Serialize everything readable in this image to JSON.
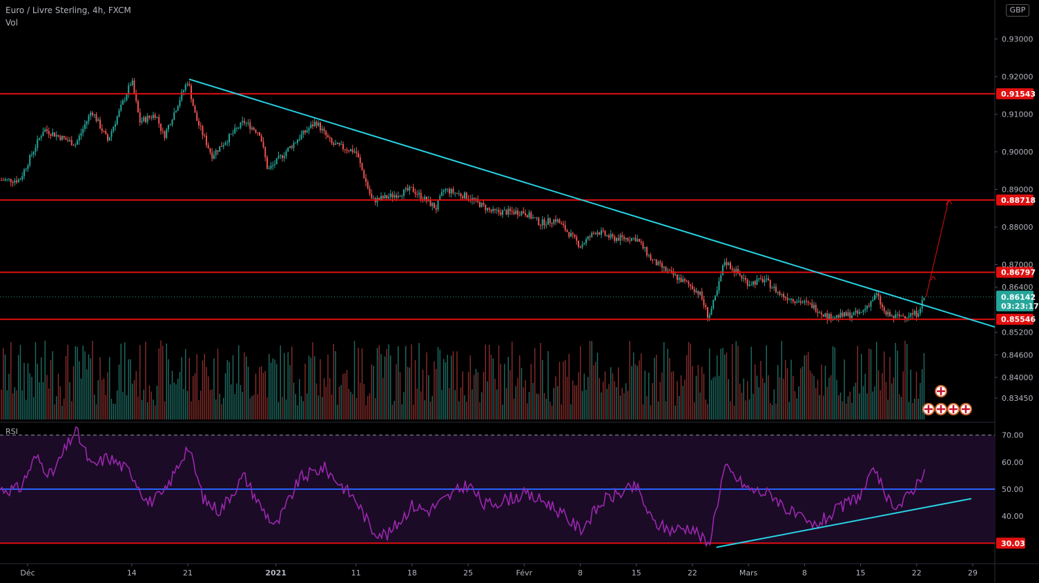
{
  "header": {
    "symbol": "Euro / Livre Sterling, 4h, FXCM",
    "volume_label": "Vol",
    "rsi_label": "RSI",
    "currency_badge": "GBP"
  },
  "colors": {
    "background": "#000000",
    "up": "#26a69a",
    "down": "#ef5350",
    "level_line": "#e01010",
    "trendline": "#28d3e6",
    "rsi_line": "#9c27b0",
    "rsi_mid": "#2962ff",
    "badge_red": "#e01010",
    "badge_price": "#26a69a"
  },
  "chart_data": [
    {
      "type": "candlestick",
      "title": "Euro / Livre Sterling, 4h, FXCM",
      "x_labels": [
        "Déc",
        "14",
        "21",
        "2021",
        "11",
        "18",
        "25",
        "Févr",
        "8",
        "15",
        "22",
        "Mars",
        "8",
        "15",
        "22",
        "29"
      ],
      "y_ticks": [
        0.93,
        0.92,
        0.91,
        0.9,
        0.89,
        0.88,
        0.87,
        0.864,
        0.852,
        0.846,
        0.84,
        0.8345
      ],
      "y_tick_labels": [
        "0.93000",
        "0.92000",
        "0.91000",
        "0.90000",
        "0.89000",
        "0.88000",
        "0.87000",
        "0.86400",
        "0.85200",
        "0.84600",
        "0.84000",
        "0.83450"
      ],
      "horizontal_levels": [
        {
          "value": 0.91543,
          "label": "0.91543"
        },
        {
          "value": 0.88718,
          "label": "0.88718"
        },
        {
          "value": 0.86797,
          "label": "0.86797"
        },
        {
          "value": 0.85546,
          "label": "0.85546"
        }
      ],
      "current_price": {
        "value": 0.86142,
        "label": "0.86142",
        "countdown": "03:23:17"
      },
      "price_path": [
        [
          "Nov 30",
          0.8925
        ],
        [
          "Dec 03",
          0.906
        ],
        [
          "Dec 07",
          0.902
        ],
        [
          "Dec 09",
          0.911
        ],
        [
          "Dec 11",
          0.903
        ],
        [
          "Dec 14",
          0.919
        ],
        [
          "Dec 15",
          0.908
        ],
        [
          "Dec 17",
          0.91
        ],
        [
          "Dec 18",
          0.904
        ],
        [
          "Dec 21",
          0.919
        ],
        [
          "Dec 22",
          0.909
        ],
        [
          "Dec 24",
          0.899
        ],
        [
          "Dec 28",
          0.908
        ],
        [
          "Dec 30",
          0.905
        ],
        [
          "Dec 31",
          0.895
        ],
        [
          "Jan 04",
          0.904
        ],
        [
          "Jan 06",
          0.908
        ],
        [
          "Jan 08",
          0.902
        ],
        [
          "Jan 11",
          0.9
        ],
        [
          "Jan 13",
          0.887
        ],
        [
          "Jan 15",
          0.888
        ],
        [
          "Jan 18",
          0.89
        ],
        [
          "Jan 21",
          0.885
        ],
        [
          "Jan 22",
          0.89
        ],
        [
          "Jan 25",
          0.888
        ],
        [
          "Jan 28",
          0.884
        ],
        [
          "Feb 01",
          0.884
        ],
        [
          "Feb 03",
          0.881
        ],
        [
          "Feb 05",
          0.882
        ],
        [
          "Feb 08",
          0.875
        ],
        [
          "Feb 10",
          0.879
        ],
        [
          "Feb 12",
          0.877
        ],
        [
          "Feb 15",
          0.877
        ],
        [
          "Feb 17",
          0.871
        ],
        [
          "Feb 19",
          0.868
        ],
        [
          "Feb 22",
          0.864
        ],
        [
          "Feb 23",
          0.862
        ],
        [
          "Feb 24",
          0.856
        ],
        [
          "Feb 25",
          0.862
        ],
        [
          "Feb 26",
          0.871
        ],
        [
          "Mar 01",
          0.865
        ],
        [
          "Mar 03",
          0.866
        ],
        [
          "Mar 05",
          0.862
        ],
        [
          "Mar 09",
          0.859
        ],
        [
          "Mar 11",
          0.856
        ],
        [
          "Mar 15",
          0.857
        ],
        [
          "Mar 17",
          0.862
        ],
        [
          "Mar 18",
          0.857
        ],
        [
          "Mar 19",
          0.856
        ],
        [
          "Mar 22",
          0.857
        ],
        [
          "Mar 23",
          0.8614
        ]
      ],
      "trendline": {
        "from": [
          "Dec 21",
          0.9193
        ],
        "to": [
          "Mar 29",
          0.8534
        ]
      },
      "projection_arrow": {
        "from": [
          "Mar 23",
          0.8614
        ],
        "to": [
          "Mar 26",
          0.8872
        ]
      }
    },
    {
      "type": "line",
      "title": "RSI",
      "y_ticks": [
        70,
        60,
        50,
        40
      ],
      "y_tick_labels": [
        "70.00",
        "60.00",
        "50.00",
        "40.00"
      ],
      "levels": [
        {
          "value": 70,
          "style": "dashed"
        },
        {
          "value": 50,
          "style": "solid"
        }
      ],
      "marked_level": {
        "value": 30.03,
        "label": "30.03"
      },
      "rsi_path": [
        [
          "Nov 30",
          50
        ],
        [
          "Dec 02",
          62
        ],
        [
          "Dec 04",
          55
        ],
        [
          "Dec 07",
          72
        ],
        [
          "Dec 09",
          58
        ],
        [
          "Dec 11",
          62
        ],
        [
          "Dec 14",
          56
        ],
        [
          "Dec 16",
          45
        ],
        [
          "Dec 18",
          48
        ],
        [
          "Dec 21",
          66
        ],
        [
          "Dec 23",
          46
        ],
        [
          "Dec 25",
          42
        ],
        [
          "Dec 28",
          55
        ],
        [
          "Dec 30",
          44
        ],
        [
          "Jan 01",
          36
        ],
        [
          "Jan 04",
          54
        ],
        [
          "Jan 07",
          58
        ],
        [
          "Jan 11",
          46
        ],
        [
          "Jan 13",
          35
        ],
        [
          "Jan 15",
          33
        ],
        [
          "Jan 18",
          44
        ],
        [
          "Jan 20",
          42
        ],
        [
          "Jan 22",
          46
        ],
        [
          "Jan 25",
          52
        ],
        [
          "Jan 27",
          44
        ],
        [
          "Feb 01",
          48
        ],
        [
          "Feb 04",
          45
        ],
        [
          "Feb 08",
          35
        ],
        [
          "Feb 11",
          46
        ],
        [
          "Feb 15",
          51
        ],
        [
          "Feb 17",
          38
        ],
        [
          "Feb 19",
          35
        ],
        [
          "Feb 22",
          36
        ],
        [
          "Feb 24",
          29
        ],
        [
          "Feb 26",
          58
        ],
        [
          "Mar 01",
          50
        ],
        [
          "Mar 04",
          48
        ],
        [
          "Mar 06",
          42
        ],
        [
          "Mar 09",
          36
        ],
        [
          "Mar 12",
          42
        ],
        [
          "Mar 15",
          48
        ],
        [
          "Mar 17",
          58
        ],
        [
          "Mar 18",
          46
        ],
        [
          "Mar 20",
          44
        ],
        [
          "Mar 22",
          52
        ],
        [
          "Mar 23",
          58
        ]
      ],
      "trendline": {
        "from": [
          "Feb 25",
          28.5
        ],
        "to": [
          "Mar 29",
          46.5
        ]
      }
    }
  ]
}
